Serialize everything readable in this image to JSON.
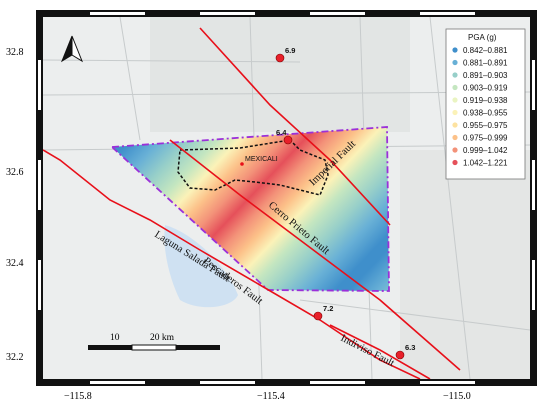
{
  "axes": {
    "x_ticks": [
      "−115.8",
      "−115.4",
      "−115.0"
    ],
    "y_ticks": [
      "32.8",
      "32.6",
      "32.4",
      "32.2"
    ]
  },
  "legend": {
    "title": "PGA (g)",
    "items": [
      {
        "label": "0.842–0.881",
        "color": "#3f8fcb"
      },
      {
        "label": "0.881–0.891",
        "color": "#68b0d6"
      },
      {
        "label": "0.891–0.903",
        "color": "#97cfc9"
      },
      {
        "label": "0.903–0.919",
        "color": "#c4e6c0"
      },
      {
        "label": "0.919–0.938",
        "color": "#eaf4c2"
      },
      {
        "label": "0.938–0.955",
        "color": "#fbf2b8"
      },
      {
        "label": "0.955–0.975",
        "color": "#fde2a0"
      },
      {
        "label": "0.975–0.999",
        "color": "#fcc189"
      },
      {
        "label": "0.999–1.042",
        "color": "#f39279"
      },
      {
        "label": "1.042–1.221",
        "color": "#e5505a"
      }
    ]
  },
  "faults": {
    "imperial": "Imperial Fault",
    "cerro_prieto": "Cerro Prieto Fault",
    "pescaderos": "Pescaderos Fault",
    "laguna_salada": "Laguna Salada Fault",
    "indiviso": "Indiviso Fault"
  },
  "city": "MEXICALI",
  "earthquakes": [
    {
      "mag": "6.9"
    },
    {
      "mag": "6.4"
    },
    {
      "mag": "7.2"
    },
    {
      "mag": "6.3"
    }
  ],
  "scale_bar": {
    "label_a": "10",
    "label_b": "20 km"
  },
  "colors": {
    "fault": "#e8101a",
    "study_area": "#9b30d9",
    "epicenter": "#e8202a"
  }
}
